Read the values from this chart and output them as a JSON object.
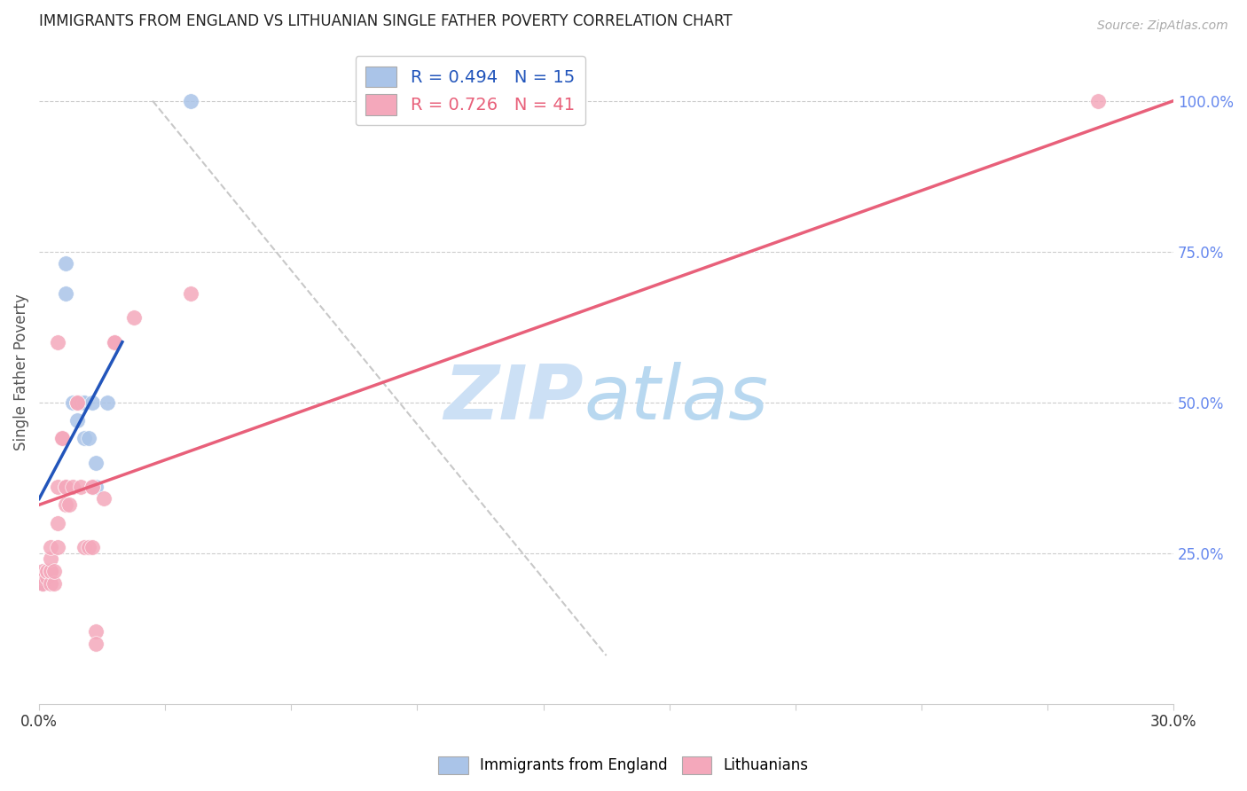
{
  "title": "IMMIGRANTS FROM ENGLAND VS LITHUANIAN SINGLE FATHER POVERTY CORRELATION CHART",
  "source": "Source: ZipAtlas.com",
  "ylabel_label": "Single Father Poverty",
  "right_yticklabels": [
    "",
    "25.0%",
    "50.0%",
    "75.0%",
    "100.0%"
  ],
  "xlim": [
    0.0,
    0.3
  ],
  "ylim": [
    0.0,
    1.1
  ],
  "england_R": 0.494,
  "england_N": 15,
  "lithuanian_R": 0.726,
  "lithuanian_N": 41,
  "england_color": "#aac4e8",
  "lithuanian_color": "#f4a8bb",
  "england_line_color": "#2255bb",
  "lithuanian_line_color": "#e8607a",
  "dashed_line_color": "#c8c8c8",
  "england_scatter": [
    [
      0.001,
      0.2
    ],
    [
      0.007,
      0.68
    ],
    [
      0.007,
      0.73
    ],
    [
      0.009,
      0.5
    ],
    [
      0.01,
      0.47
    ],
    [
      0.01,
      0.5
    ],
    [
      0.011,
      0.5
    ],
    [
      0.012,
      0.5
    ],
    [
      0.012,
      0.44
    ],
    [
      0.013,
      0.44
    ],
    [
      0.014,
      0.5
    ],
    [
      0.015,
      0.36
    ],
    [
      0.015,
      0.4
    ],
    [
      0.018,
      0.5
    ],
    [
      0.04,
      1.0
    ]
  ],
  "lithuanian_scatter": [
    [
      0.001,
      0.2
    ],
    [
      0.001,
      0.21
    ],
    [
      0.001,
      0.22
    ],
    [
      0.001,
      0.2
    ],
    [
      0.002,
      0.21
    ],
    [
      0.002,
      0.22
    ],
    [
      0.002,
      0.22
    ],
    [
      0.003,
      0.2
    ],
    [
      0.003,
      0.22
    ],
    [
      0.003,
      0.22
    ],
    [
      0.003,
      0.24
    ],
    [
      0.003,
      0.26
    ],
    [
      0.004,
      0.2
    ],
    [
      0.004,
      0.22
    ],
    [
      0.005,
      0.26
    ],
    [
      0.005,
      0.3
    ],
    [
      0.005,
      0.36
    ],
    [
      0.005,
      0.6
    ],
    [
      0.006,
      0.44
    ],
    [
      0.006,
      0.44
    ],
    [
      0.007,
      0.33
    ],
    [
      0.007,
      0.36
    ],
    [
      0.007,
      0.36
    ],
    [
      0.008,
      0.33
    ],
    [
      0.009,
      0.36
    ],
    [
      0.01,
      0.5
    ],
    [
      0.01,
      0.5
    ],
    [
      0.011,
      0.36
    ],
    [
      0.012,
      0.26
    ],
    [
      0.013,
      0.26
    ],
    [
      0.014,
      0.26
    ],
    [
      0.014,
      0.36
    ],
    [
      0.014,
      0.36
    ],
    [
      0.015,
      0.12
    ],
    [
      0.015,
      0.1
    ],
    [
      0.017,
      0.34
    ],
    [
      0.02,
      0.6
    ],
    [
      0.02,
      0.6
    ],
    [
      0.025,
      0.64
    ],
    [
      0.04,
      0.68
    ],
    [
      0.28,
      1.0
    ]
  ],
  "watermark_zip": "ZIP",
  "watermark_atlas": "atlas",
  "watermark_color": "#cce0f5",
  "england_line_x": [
    0.0,
    0.022
  ],
  "england_line_y": [
    0.34,
    0.6
  ],
  "lithuanian_line_x": [
    0.0,
    0.3
  ],
  "lithuanian_line_y": [
    0.33,
    1.0
  ],
  "dashed_line_x": [
    0.03,
    0.15
  ],
  "dashed_line_y": [
    1.0,
    0.08
  ]
}
